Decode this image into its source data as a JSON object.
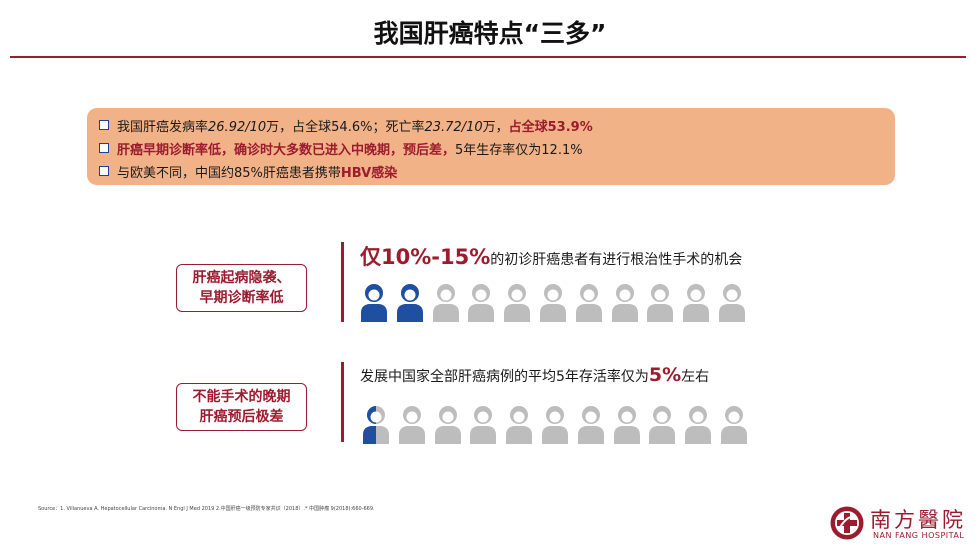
{
  "title": "我国肝癌特点“三多”",
  "summary": {
    "line1_a": "我国肝癌发病率",
    "line1_b": "26.92/10",
    "line1_c": "万，占全球54.6%；死亡率",
    "line1_d": "23.72/10",
    "line1_e": "万，",
    "line1_f": "占全球53.9%",
    "line2_a": "肝癌早期诊断率低，确诊时大多数已进入中晚期，预后差，",
    "line2_b": "5年生存率仅为12.1%",
    "line3_a": "与欧美不同，中国约85%肝癌患者携带",
    "line3_b": "HBV感染"
  },
  "block1": {
    "tag": "肝癌起病隐袭、早期诊断率低",
    "tag_line1": "肝癌起病隐袭、",
    "tag_line2": "早期诊断率低",
    "stat_big": "仅10%-15%",
    "stat_rest": "的初诊肝癌患者有进行根治性手术的机会",
    "people_count": 11,
    "highlighted_fraction": 2
  },
  "block2": {
    "tag_line1": "不能手术的晚期",
    "tag_line2": "肝癌预后极差",
    "stat_a": "发展中国家全部肝癌病例的平均5年存活率仅为",
    "stat_big": "5%",
    "stat_c": "左右",
    "people_count": 11,
    "highlighted_fraction": 0.5
  },
  "source": "Source：1. Villanueva A. Hepatocellular Carcinoma. N Engl J Med 2019  2.中国肝癌一级预防专家共识（2018）.* 中国肿瘤 9(2018):660-669.",
  "logo": {
    "cn": "南方醫院",
    "en": "NAN FANG HOSPITAL"
  },
  "colors": {
    "accent": "#9b1c2f",
    "box": "#f2b287",
    "blue": "#1f4fa0",
    "grey": "#bdbdbd"
  }
}
